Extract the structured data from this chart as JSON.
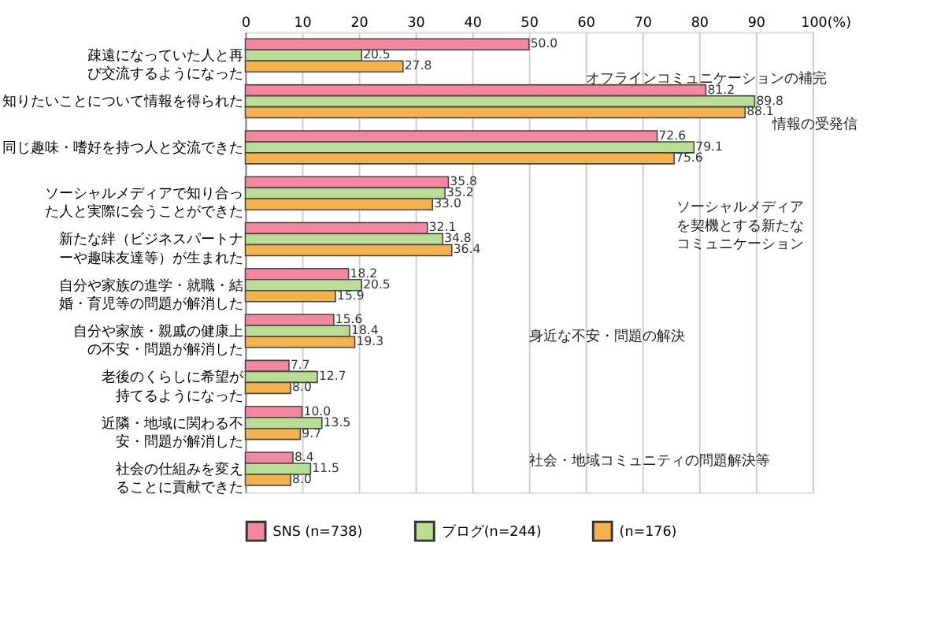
{
  "chart_data": {
    "type": "bar",
    "orientation": "horizontal",
    "categories": [
      "疎遠になっていた人と再び交流するようになった",
      "知りたいことについて情報を得られた",
      "同じ趣味・嗜好を持つ人と交流できた",
      "ソーシャルメディアで知り合った人と実際に会うことができた",
      "新たな絆（ビジネスパートナーや趣味友達等）が生まれた",
      "自分や家族の進学・就職・結婚・育児等の問題が解消した",
      "自分や家族・親戚の健康上の不安・問題が解消した",
      "老後のくらしに希望が持てるようになった",
      "近隣・地域に関わる不安・問題が解消した",
      "社会の仕組みを変えることに貢献できた"
    ],
    "series": [
      {
        "name": "SNS (n=738)",
        "color": "#f4879f",
        "values": [
          50.0,
          81.2,
          72.6,
          35.8,
          32.1,
          18.2,
          15.6,
          7.7,
          10.0,
          8.4
        ],
        "value_labels": [
          "50.0",
          "81.2",
          "72.6",
          "35.8",
          "32.1",
          "18.2",
          "15.6",
          "7.7",
          "10.0",
          "8.4"
        ]
      },
      {
        "name": "ブログ(n=244)",
        "color": "#b9dd94",
        "values": [
          20.5,
          89.8,
          79.1,
          35.2,
          34.8,
          20.5,
          18.4,
          12.7,
          13.5,
          11.5
        ],
        "value_labels": [
          "20.5",
          "89.8",
          "79.1",
          "35.2",
          "34.8",
          "20.5",
          "18.4",
          "12.7",
          "13.5",
          "11.5"
        ]
      },
      {
        "name": "(n=176)",
        "color": "#f4b24e",
        "values": [
          27.8,
          88.1,
          75.6,
          33.0,
          36.4,
          15.9,
          19.3,
          8.0,
          9.7,
          8.0
        ],
        "value_labels": [
          "27.8",
          "88.1",
          "75.6",
          "33.0",
          "36.4",
          "15.9",
          "19.3",
          "8.0",
          "9.7",
          "8.0"
        ]
      }
    ],
    "xlim": [
      0,
      100
    ],
    "xticks": [
      0,
      10,
      20,
      30,
      40,
      50,
      60,
      70,
      80,
      90,
      {
        "value": 100,
        "label": "100(%)"
      }
    ],
    "grid": "x",
    "legend": "bottom",
    "annotations": [
      "オフラインコミュニケーションの補完",
      "情報の受発信",
      "ソーシャルメディアを契機とする新たなコミュニケーション",
      "身近な不安・問題の解決",
      "社会・地域コミュニティの問題解決等"
    ]
  }
}
